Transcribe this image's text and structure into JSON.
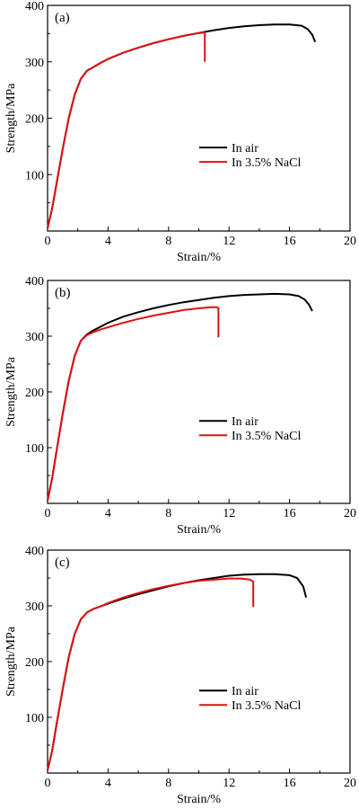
{
  "figure": {
    "legend_labels": [
      "In air",
      "In 3.5% NaCl"
    ],
    "colors": {
      "in_air": "#000000",
      "in_nacl": "#e01010"
    }
  },
  "chart_data": [
    {
      "type": "line",
      "panel_label": "(a)",
      "xlabel": "Strain/%",
      "ylabel": "Strength/MPa",
      "xlim": [
        0,
        20
      ],
      "ylim": [
        0,
        400
      ],
      "xticks": [
        0,
        4,
        8,
        12,
        16,
        20
      ],
      "yticks": [
        100,
        200,
        300,
        400
      ],
      "legend": "center-right",
      "grid": false,
      "series": [
        {
          "name": "In air",
          "color": "#000000",
          "x": [
            0.0,
            0.3,
            0.6,
            1.0,
            1.4,
            1.8,
            2.2,
            2.6,
            3.0,
            3.5,
            4.0,
            5.0,
            6.0,
            7.0,
            8.0,
            9.0,
            10.0,
            11.0,
            12.0,
            13.0,
            14.0,
            15.0,
            16.0,
            16.8,
            17.2,
            17.5,
            17.7
          ],
          "y": [
            5,
            40,
            85,
            145,
            200,
            242,
            270,
            284,
            290,
            298,
            305,
            316,
            325,
            333,
            340,
            346,
            351,
            356,
            360,
            363,
            365,
            366,
            366,
            364,
            358,
            348,
            335
          ]
        },
        {
          "name": "In 3.5% NaCl",
          "color": "#e01010",
          "x": [
            0.0,
            0.3,
            0.6,
            1.0,
            1.4,
            1.8,
            2.2,
            2.6,
            3.0,
            3.5,
            4.0,
            5.0,
            6.0,
            7.0,
            8.0,
            9.0,
            9.8,
            10.35,
            10.4,
            10.4
          ],
          "y": [
            5,
            40,
            85,
            145,
            200,
            242,
            270,
            284,
            290,
            298,
            305,
            316,
            325,
            333,
            340,
            346,
            350,
            352,
            350,
            300
          ]
        }
      ]
    },
    {
      "type": "line",
      "panel_label": "(b)",
      "xlabel": "Strain/%",
      "ylabel": "Strength/MPa",
      "xlim": [
        0,
        20
      ],
      "ylim": [
        0,
        400
      ],
      "xticks": [
        0,
        4,
        8,
        12,
        16,
        20
      ],
      "yticks": [
        100,
        200,
        300,
        400
      ],
      "legend": "center-right",
      "grid": false,
      "series": [
        {
          "name": "In air",
          "color": "#000000",
          "x": [
            0.0,
            0.3,
            0.6,
            1.0,
            1.4,
            1.8,
            2.2,
            2.6,
            3.0,
            3.5,
            4.0,
            5.0,
            6.0,
            7.0,
            8.0,
            9.0,
            10.0,
            11.0,
            12.0,
            13.0,
            14.0,
            15.0,
            16.0,
            16.6,
            17.0,
            17.3,
            17.5
          ],
          "y": [
            5,
            45,
            95,
            160,
            220,
            265,
            292,
            303,
            310,
            317,
            324,
            335,
            343,
            350,
            356,
            361,
            365,
            369,
            372,
            374,
            375,
            376,
            375,
            372,
            366,
            356,
            345
          ]
        },
        {
          "name": "In 3.5% NaCl",
          "color": "#e01010",
          "x": [
            0.0,
            0.3,
            0.6,
            1.0,
            1.4,
            1.8,
            2.2,
            2.6,
            3.0,
            3.5,
            4.0,
            5.0,
            6.0,
            7.0,
            8.0,
            9.0,
            10.0,
            10.8,
            11.2,
            11.3,
            11.3
          ],
          "y": [
            5,
            45,
            95,
            160,
            220,
            265,
            292,
            302,
            307,
            312,
            316,
            324,
            331,
            337,
            342,
            347,
            350,
            352,
            352,
            350,
            298
          ]
        }
      ]
    },
    {
      "type": "line",
      "panel_label": "(c)",
      "xlabel": "Strain/%",
      "ylabel": "Strength/MPa",
      "xlim": [
        0,
        20
      ],
      "ylim": [
        0,
        400
      ],
      "xticks": [
        0,
        4,
        8,
        12,
        16,
        20
      ],
      "yticks": [
        100,
        200,
        300,
        400
      ],
      "legend": "center-right",
      "grid": false,
      "series": [
        {
          "name": "In air",
          "color": "#000000",
          "x": [
            0.0,
            0.3,
            0.6,
            1.0,
            1.4,
            1.8,
            2.2,
            2.6,
            3.0,
            3.5,
            4.0,
            5.0,
            6.0,
            7.0,
            8.0,
            9.0,
            10.0,
            11.0,
            12.0,
            13.0,
            14.0,
            15.0,
            16.0,
            16.5,
            16.9,
            17.1
          ],
          "y": [
            5,
            40,
            88,
            150,
            208,
            250,
            276,
            288,
            294,
            299,
            304,
            313,
            321,
            328,
            335,
            341,
            346,
            350,
            354,
            356,
            357,
            357,
            355,
            350,
            335,
            315
          ]
        },
        {
          "name": "In 3.5% NaCl",
          "color": "#e01010",
          "x": [
            0.0,
            0.3,
            0.6,
            1.0,
            1.4,
            1.8,
            2.2,
            2.6,
            3.0,
            3.5,
            4.0,
            5.0,
            6.0,
            7.0,
            8.0,
            9.0,
            10.0,
            11.0,
            12.0,
            12.8,
            13.4,
            13.6,
            13.6
          ],
          "y": [
            5,
            40,
            88,
            150,
            208,
            250,
            276,
            288,
            294,
            299,
            305,
            315,
            323,
            330,
            336,
            341,
            345,
            347,
            349,
            349,
            347,
            343,
            298
          ]
        }
      ]
    }
  ]
}
